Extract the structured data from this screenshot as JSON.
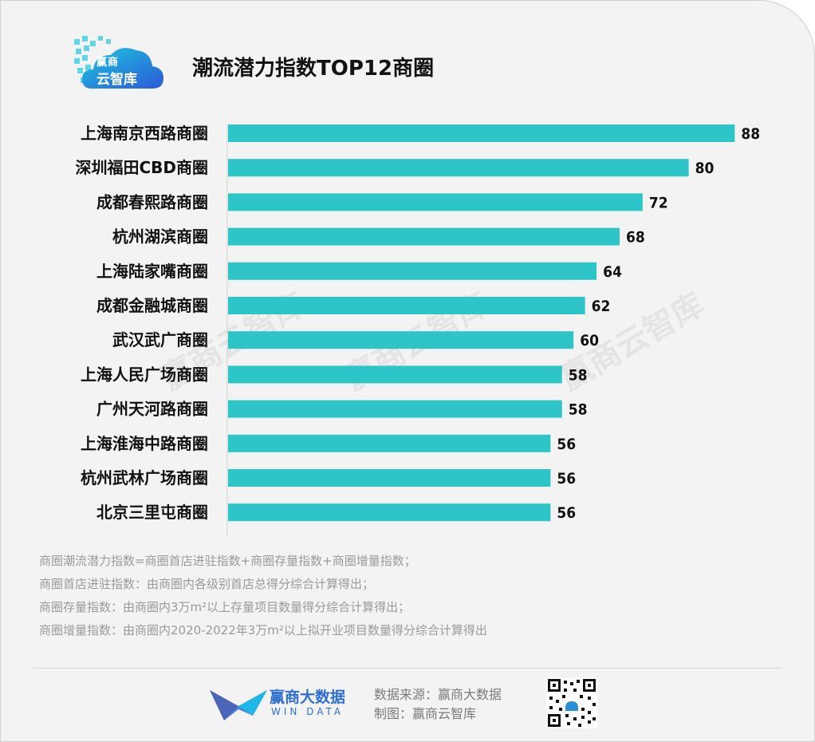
{
  "title": "潮流潜力指数TOP12商圈",
  "logo": {
    "line1": "赢商",
    "line2": "云智库"
  },
  "watermark": "赢商云智库",
  "chart_data": {
    "type": "bar",
    "orientation": "horizontal",
    "categories": [
      "上海南京西路商圈",
      "深圳福田CBD商圈",
      "成都春熙路商圈",
      "杭州湖滨商圈",
      "上海陆家嘴商圈",
      "成都金融城商圈",
      "武汉武广商圈",
      "上海人民广场商圈",
      "广州天河路商圈",
      "上海淮海中路商圈",
      "杭州武林广场商圈",
      "北京三里屯商圈"
    ],
    "values": [
      88,
      80,
      72,
      68,
      64,
      62,
      60,
      58,
      58,
      56,
      56,
      56
    ],
    "xlim": [
      0,
      100
    ],
    "bar_color": "#2ec5c8",
    "grid": false,
    "legend": "none"
  },
  "notes": [
    "商圈潮流潜力指数=商圈首店进驻指数+商圈存量指数+商圈增量指数；",
    "商圈首店进驻指数：由商圈内各级别首店总得分综合计算得出；",
    "商圈存量指数：由商圈内3万m²以上存量项目数量得分综合计算得出；",
    "商圈增量指数：由商圈内2020-2022年3万m²以上拟开业项目数量得分综合计算得出"
  ],
  "footer": {
    "brand_cn": "赢商大数据",
    "brand_en": "WIN DATA",
    "source": "数据来源：赢商大数据",
    "made_by": "制图：赢商云智库"
  },
  "colors": {
    "brand_blue": "#2f6fd0",
    "brand_red": "#e8343a",
    "bar": "#2ec5c8"
  }
}
